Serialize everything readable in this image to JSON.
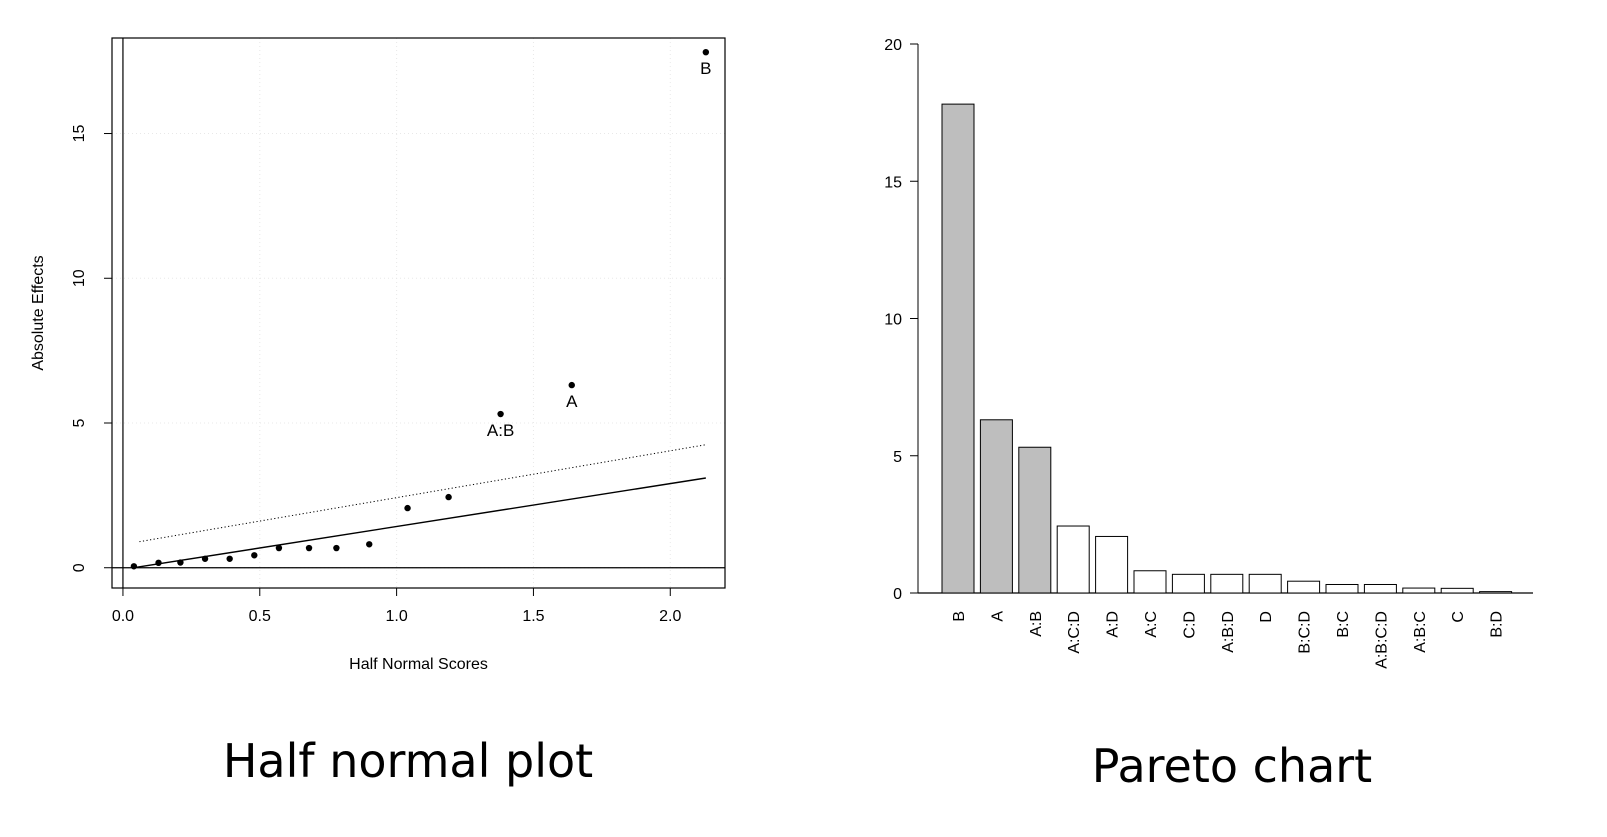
{
  "chart_data": [
    {
      "type": "scatter",
      "caption": "Half normal plot",
      "xlabel": "Half Normal Scores",
      "ylabel": "Absolute Effects",
      "xlim": [
        -0.04,
        2.2
      ],
      "ylim": [
        -0.7,
        18.3
      ],
      "xticks": [
        0.0,
        0.5,
        1.0,
        1.5,
        2.0
      ],
      "xtick_labels": [
        "0.0",
        "0.5",
        "1.0",
        "1.5",
        "2.0"
      ],
      "yticks": [
        0,
        5,
        10,
        15
      ],
      "ytick_labels": [
        "0",
        "5",
        "10",
        "15"
      ],
      "grid": true,
      "points": [
        {
          "x": 0.04,
          "y": 0.05,
          "label": ""
        },
        {
          "x": 0.13,
          "y": 0.17,
          "label": ""
        },
        {
          "x": 0.21,
          "y": 0.18,
          "label": ""
        },
        {
          "x": 0.3,
          "y": 0.31,
          "label": ""
        },
        {
          "x": 0.39,
          "y": 0.31,
          "label": ""
        },
        {
          "x": 0.48,
          "y": 0.43,
          "label": ""
        },
        {
          "x": 0.57,
          "y": 0.68,
          "label": ""
        },
        {
          "x": 0.68,
          "y": 0.68,
          "label": ""
        },
        {
          "x": 0.78,
          "y": 0.68,
          "label": ""
        },
        {
          "x": 0.9,
          "y": 0.81,
          "label": ""
        },
        {
          "x": 1.04,
          "y": 2.06,
          "label": ""
        },
        {
          "x": 1.19,
          "y": 2.44,
          "label": ""
        },
        {
          "x": 1.38,
          "y": 5.31,
          "label": "A:B"
        },
        {
          "x": 1.64,
          "y": 6.31,
          "label": "A"
        },
        {
          "x": 2.13,
          "y": 17.81,
          "label": "B"
        }
      ],
      "solid_line": {
        "x": [
          0.04,
          2.13
        ],
        "y": [
          0.0,
          3.1
        ]
      },
      "dotted_line": {
        "x": [
          0.06,
          2.13
        ],
        "y": [
          0.9,
          4.25
        ]
      },
      "hline_y": 0,
      "vline_x": 0
    },
    {
      "type": "bar",
      "caption": "Pareto chart",
      "categories": [
        "B",
        "A",
        "A:B",
        "A:C:D",
        "A:D",
        "A:C",
        "C:D",
        "A:B:D",
        "D",
        "B:C:D",
        "B:C",
        "A:B:C:D",
        "A:B:C",
        "C",
        "B:D"
      ],
      "values": [
        17.81,
        6.31,
        5.31,
        2.44,
        2.06,
        0.81,
        0.68,
        0.68,
        0.68,
        0.43,
        0.31,
        0.31,
        0.18,
        0.17,
        0.05
      ],
      "significant": [
        true,
        true,
        true,
        false,
        false,
        false,
        false,
        false,
        false,
        false,
        false,
        false,
        false,
        false,
        false
      ],
      "colors": {
        "significant": "#bebebe",
        "other": "#ffffff"
      },
      "ylim": [
        0,
        20
      ],
      "yticks": [
        0,
        5,
        10,
        15,
        20
      ],
      "ytick_labels": [
        "0",
        "5",
        "10",
        "15",
        "20"
      ]
    }
  ]
}
